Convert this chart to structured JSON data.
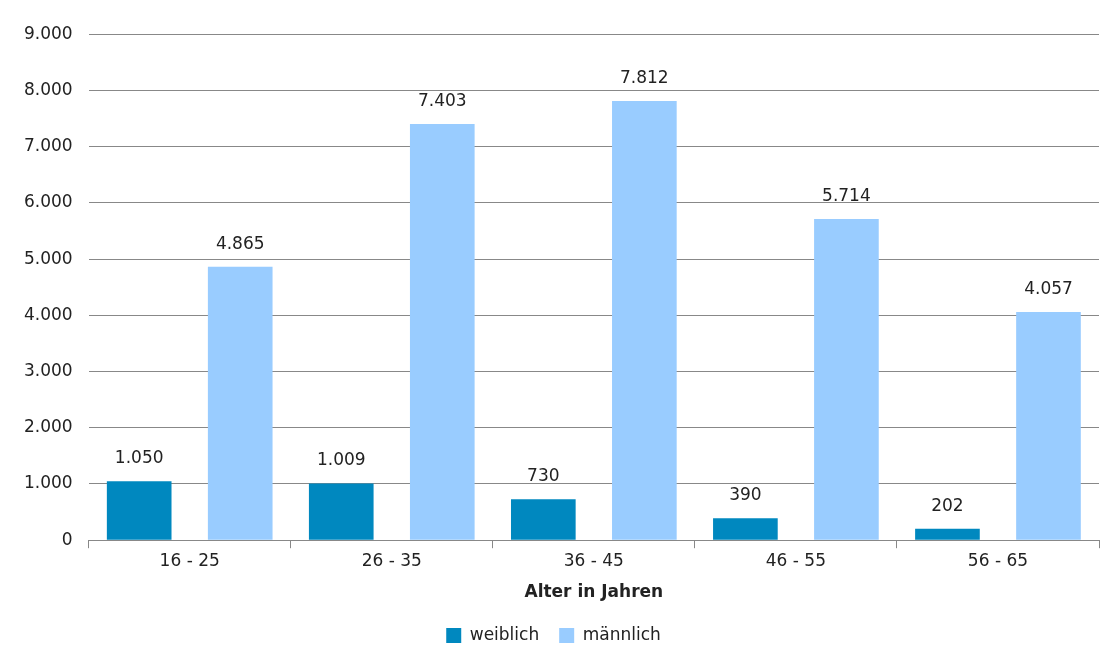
{
  "chart_data": {
    "type": "bar",
    "xlabel": "Alter in Jahren",
    "categories": [
      "16 - 25",
      "26 - 35",
      "36 - 45",
      "46 - 55",
      "56 - 65"
    ],
    "series": [
      {
        "name": "weiblich",
        "color": "#0088bf",
        "values": [
          1050,
          1009,
          730,
          390,
          202
        ],
        "value_labels": [
          "1.050",
          "1.009",
          "730",
          "390",
          "202"
        ]
      },
      {
        "name": "männlich",
        "color": "#99ccff",
        "values": [
          4865,
          7403,
          7812,
          5714,
          4057
        ],
        "value_labels": [
          "4.865",
          "7.403",
          "7.812",
          "5.714",
          "4.057"
        ]
      }
    ],
    "ylim": [
      0,
      9000
    ],
    "yticks": [
      {
        "value": 0,
        "label": "0"
      },
      {
        "value": 1000,
        "label": "1.000"
      },
      {
        "value": 2000,
        "label": "2.000"
      },
      {
        "value": 3000,
        "label": "3.000"
      },
      {
        "value": 4000,
        "label": "4.000"
      },
      {
        "value": 5000,
        "label": "5.000"
      },
      {
        "value": 6000,
        "label": "6.000"
      },
      {
        "value": 7000,
        "label": "7.000"
      },
      {
        "value": 8000,
        "label": "8.000"
      },
      {
        "value": 9000,
        "label": "9.000"
      }
    ],
    "grid": "y",
    "legend": "bottom"
  }
}
